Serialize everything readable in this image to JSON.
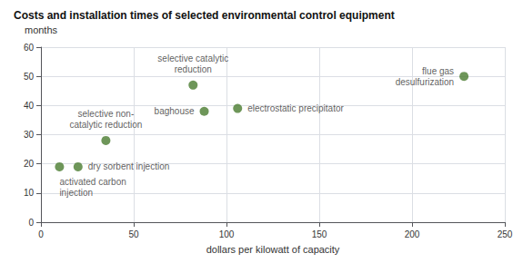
{
  "chart_data": {
    "type": "scatter",
    "title": "Costs and installation times of selected environmental control equipment",
    "xlabel": "dollars per kilowatt of capacity",
    "ylabel": "months",
    "x": [
      10,
      20,
      35,
      82,
      88,
      106,
      228
    ],
    "values": [
      19,
      19,
      28,
      47,
      38,
      39,
      50
    ],
    "annotations": [
      "activated carbon\ninjection",
      "dry sorbent injection",
      "selective non-\ncatalytic reduction",
      "selective catalytic\nreduction",
      "baghouse",
      "electrostatic precipitator",
      "flue gas\ndesulfurization"
    ],
    "color": "#4a7c2f",
    "xlim": [
      0,
      250
    ],
    "xticks": [
      0,
      50,
      100,
      150,
      200,
      250
    ],
    "ylim": [
      0,
      60
    ],
    "yticks": [
      0,
      10,
      20,
      30,
      40,
      50,
      60
    ],
    "grid": true
  }
}
